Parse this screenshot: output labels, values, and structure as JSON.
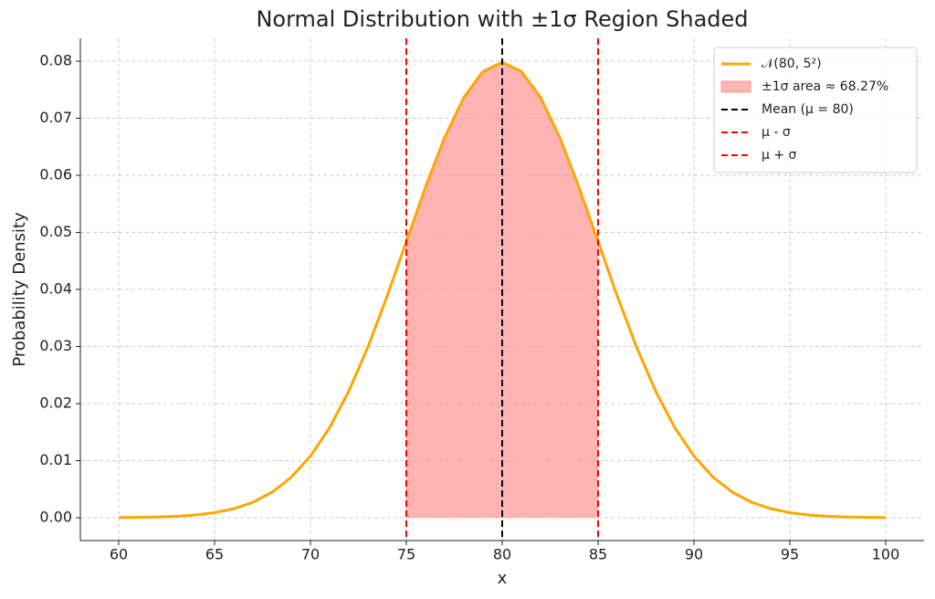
{
  "chart_data": {
    "type": "line",
    "title": "Normal Distribution with ±1σ Region Shaded",
    "xlabel": "x",
    "ylabel": "Probability Density",
    "x": [
      60,
      61,
      62,
      63,
      64,
      65,
      66,
      67,
      68,
      69,
      70,
      71,
      72,
      73,
      74,
      75,
      76,
      77,
      78,
      79,
      80,
      81,
      82,
      83,
      84,
      85,
      86,
      87,
      88,
      89,
      90,
      91,
      92,
      93,
      94,
      95,
      96,
      97,
      98,
      99,
      100
    ],
    "series": [
      {
        "name": "𝒩(80, 5²)",
        "color": "#ffa500",
        "values": [
          3e-05,
          6e-05,
          0.00012,
          0.00025,
          0.00048,
          0.00089,
          0.00158,
          0.00272,
          0.00448,
          0.00709,
          0.0108,
          0.01579,
          0.02218,
          0.02995,
          0.03884,
          0.04839,
          0.05794,
          0.06664,
          0.07366,
          0.07821,
          0.07979,
          0.07821,
          0.07366,
          0.06664,
          0.05794,
          0.04839,
          0.03884,
          0.02995,
          0.02218,
          0.01579,
          0.0108,
          0.00709,
          0.00448,
          0.00272,
          0.00158,
          0.00089,
          0.00048,
          0.00025,
          0.00012,
          6e-05,
          3e-05
        ]
      }
    ],
    "area": {
      "name": "±1σ area ≈ 68.27%",
      "color": "#ff9999",
      "x": [
        75,
        76,
        77,
        78,
        79,
        80,
        81,
        82,
        83,
        84,
        85
      ],
      "values": [
        0.04839,
        0.05794,
        0.06664,
        0.07366,
        0.07821,
        0.07979,
        0.07821,
        0.07366,
        0.06664,
        0.05794,
        0.04839
      ]
    },
    "vlines": [
      {
        "name": "Mean (μ = 80)",
        "color": "#000000",
        "value": 80
      },
      {
        "name": "μ - σ",
        "color": "#ff0000",
        "value": 75
      },
      {
        "name": "μ + σ",
        "color": "#ff0000",
        "value": 85
      }
    ],
    "xlim": [
      58,
      102
    ],
    "ylim": [
      -0.004,
      0.084
    ],
    "xticks": [
      60,
      65,
      70,
      75,
      80,
      85,
      90,
      95,
      100
    ],
    "yticks": [
      {
        "value": 0,
        "label": "0.00"
      },
      0.01,
      0.02,
      0.03,
      0.04,
      0.05,
      0.06,
      0.07,
      0.08
    ],
    "grid": true,
    "legend": "upper right"
  }
}
